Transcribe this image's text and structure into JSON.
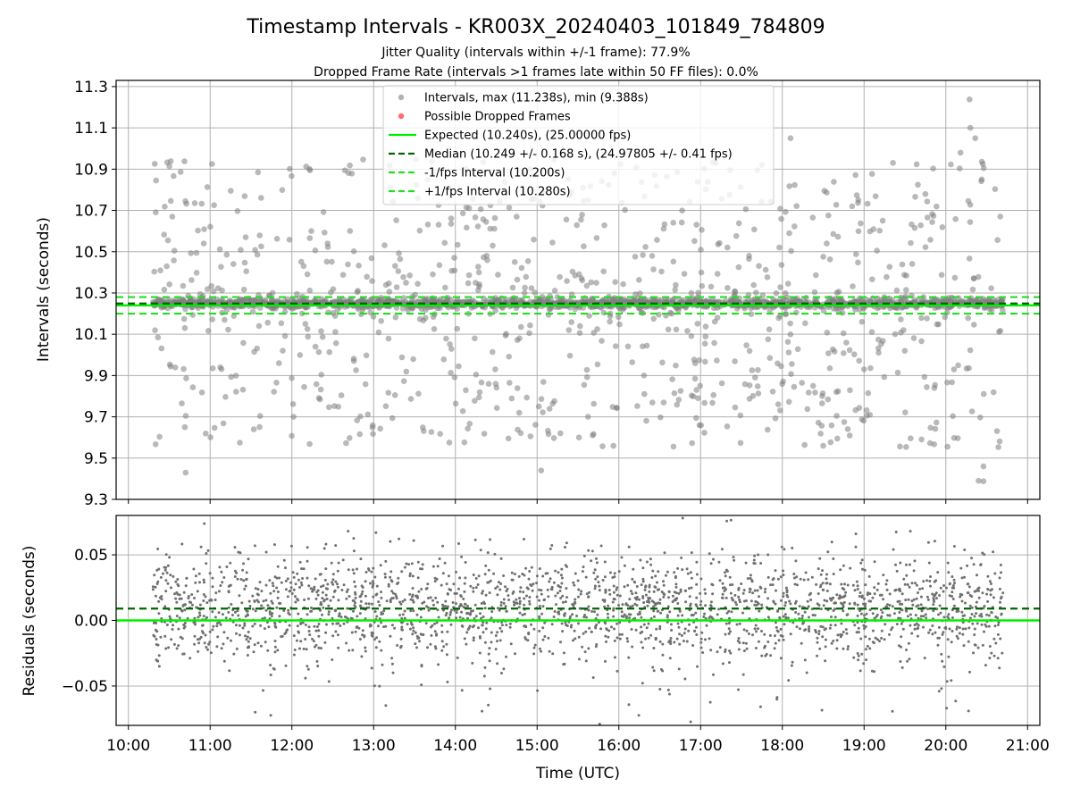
{
  "header": {
    "title": "Timestamp Intervals - KR003X_20240403_101849_784809",
    "subtitle1": "Jitter Quality (intervals within +/-1 frame): 77.9%",
    "subtitle2": "Dropped Frame Rate (intervals >1 frames late within 50 FF files): 0.0%"
  },
  "chart_data": [
    {
      "type": "scatter",
      "name": "intervals",
      "ylabel": "Intervals (seconds)",
      "xlabel": "",
      "xlim_hours": [
        9.85,
        21.15
      ],
      "ylim": [
        9.3,
        11.33
      ],
      "x_ticks": [
        "10:00",
        "11:00",
        "12:00",
        "13:00",
        "14:00",
        "15:00",
        "16:00",
        "17:00",
        "18:00",
        "19:00",
        "20:00",
        "21:00"
      ],
      "y_ticks": [
        "9.3",
        "9.5",
        "9.7",
        "9.9",
        "10.1",
        "10.3",
        "10.5",
        "10.7",
        "10.9",
        "11.1",
        "11.3"
      ],
      "grid": true,
      "data_span_hours": [
        10.3,
        20.7
      ],
      "expected": 10.24,
      "median": 10.249,
      "lower_interval": 10.2,
      "upper_interval": 10.28,
      "max": 11.238,
      "min": 9.388,
      "series_color": "#808080",
      "expected_color": "#00ee00",
      "median_color": "#006400",
      "interval_color": "#22dd22",
      "dropped_color": "#ff5555",
      "legend": {
        "position": "top-center",
        "entries": [
          "Intervals, max (11.238s), min (9.388s)",
          "Possible Dropped Frames",
          "Expected (10.240s), (25.00000 fps)",
          "Median (10.249 +/- 0.168 s), (24.97805 +/- 0.41 fps)",
          "-1/fps Interval (10.200s)",
          "+1/fps Interval (10.280s)"
        ]
      }
    },
    {
      "type": "scatter",
      "name": "residuals",
      "ylabel": "Residuals (seconds)",
      "xlabel": "Time (UTC)",
      "xlim_hours": [
        9.85,
        21.15
      ],
      "ylim": [
        -0.08,
        0.08
      ],
      "x_ticks": [
        "10:00",
        "11:00",
        "12:00",
        "13:00",
        "14:00",
        "15:00",
        "16:00",
        "17:00",
        "18:00",
        "19:00",
        "20:00",
        "21:00"
      ],
      "y_ticks": [
        "−0.05",
        "0.00",
        "0.05"
      ],
      "y_tick_values": [
        -0.05,
        0.0,
        0.05
      ],
      "grid": true,
      "zero_line": 0.0,
      "median_residual": 0.009,
      "series_color": "#707070"
    }
  ]
}
